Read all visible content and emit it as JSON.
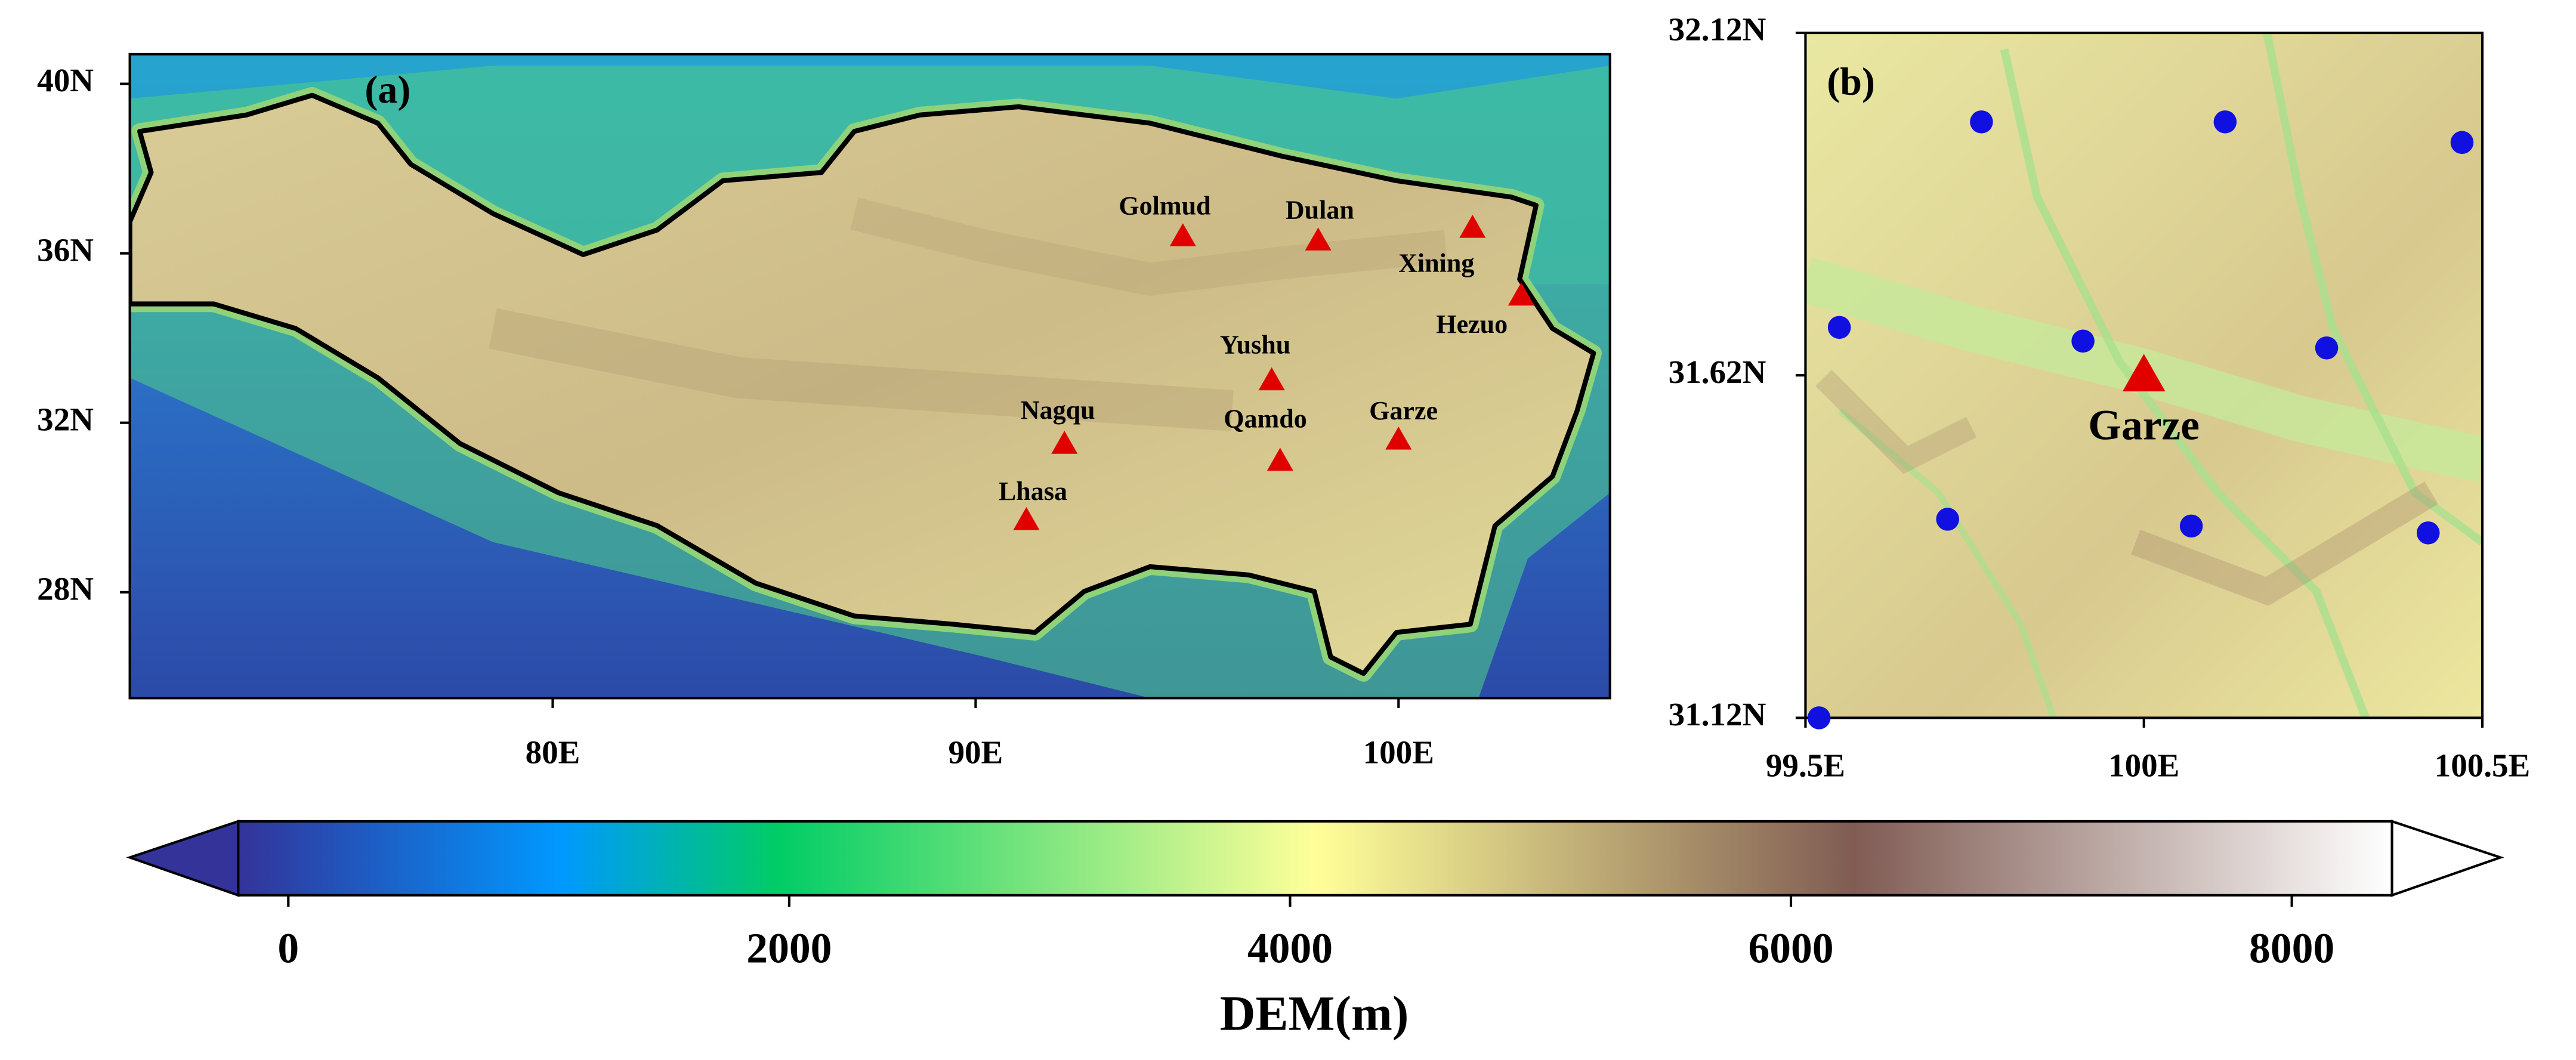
{
  "panel_a": {
    "label": "(a)",
    "xlim": [
      70,
      105
    ],
    "ylim": [
      25.5,
      40.7
    ],
    "xticks": [
      {
        "value": 80,
        "label": "80E"
      },
      {
        "value": 90,
        "label": "90E"
      },
      {
        "value": 100,
        "label": "100E"
      }
    ],
    "yticks": [
      {
        "value": 28,
        "label": "28N"
      },
      {
        "value": 32,
        "label": "32N"
      },
      {
        "value": 36,
        "label": "36N"
      },
      {
        "value": 40,
        "label": "40N"
      }
    ],
    "marker_color": "#e00000",
    "stations": [
      {
        "name": "Golmud",
        "lon": 94.9,
        "lat": 36.4
      },
      {
        "name": "Dulan",
        "lon": 98.1,
        "lat": 36.3
      },
      {
        "name": "Xining",
        "lon": 101.75,
        "lat": 36.6
      },
      {
        "name": "Hezuo",
        "lon": 102.9,
        "lat": 35.0
      },
      {
        "name": "Yushu",
        "lon": 97.0,
        "lat": 33.0
      },
      {
        "name": "Qamdo",
        "lon": 97.2,
        "lat": 31.1
      },
      {
        "name": "Garze",
        "lon": 100.0,
        "lat": 31.6
      },
      {
        "name": "Nagqu",
        "lon": 92.1,
        "lat": 31.5
      },
      {
        "name": "Lhasa",
        "lon": 91.2,
        "lat": 29.7
      }
    ]
  },
  "panel_b": {
    "label": "(b)",
    "xlim": [
      99.5,
      100.5
    ],
    "ylim": [
      31.12,
      32.12
    ],
    "xticks": [
      {
        "value": 99.5,
        "label": "99.5E"
      },
      {
        "value": 100,
        "label": "100E"
      },
      {
        "value": 100.5,
        "label": "100.5E"
      }
    ],
    "yticks": [
      {
        "value": 31.12,
        "label": "31.12N"
      },
      {
        "value": 31.62,
        "label": "31.62N"
      },
      {
        "value": 32.12,
        "label": "32.12N"
      }
    ],
    "station": {
      "name": "Garze",
      "lon": 100.0,
      "lat": 31.62,
      "color": "#e00000"
    },
    "point_color": "#1010e0",
    "points": {
      "lon": [
        99.76,
        100.12,
        100.47,
        99.55,
        99.91,
        100.27,
        99.71,
        100.07,
        100.42,
        99.52
      ],
      "lat": [
        31.99,
        31.99,
        31.96,
        31.69,
        31.67,
        31.66,
        31.41,
        31.4,
        31.39,
        31.12
      ]
    }
  },
  "colorbar": {
    "label": "DEM(m)",
    "lim": [
      -200,
      8400
    ],
    "ticks": [
      0,
      2000,
      4000,
      6000,
      8000
    ]
  }
}
